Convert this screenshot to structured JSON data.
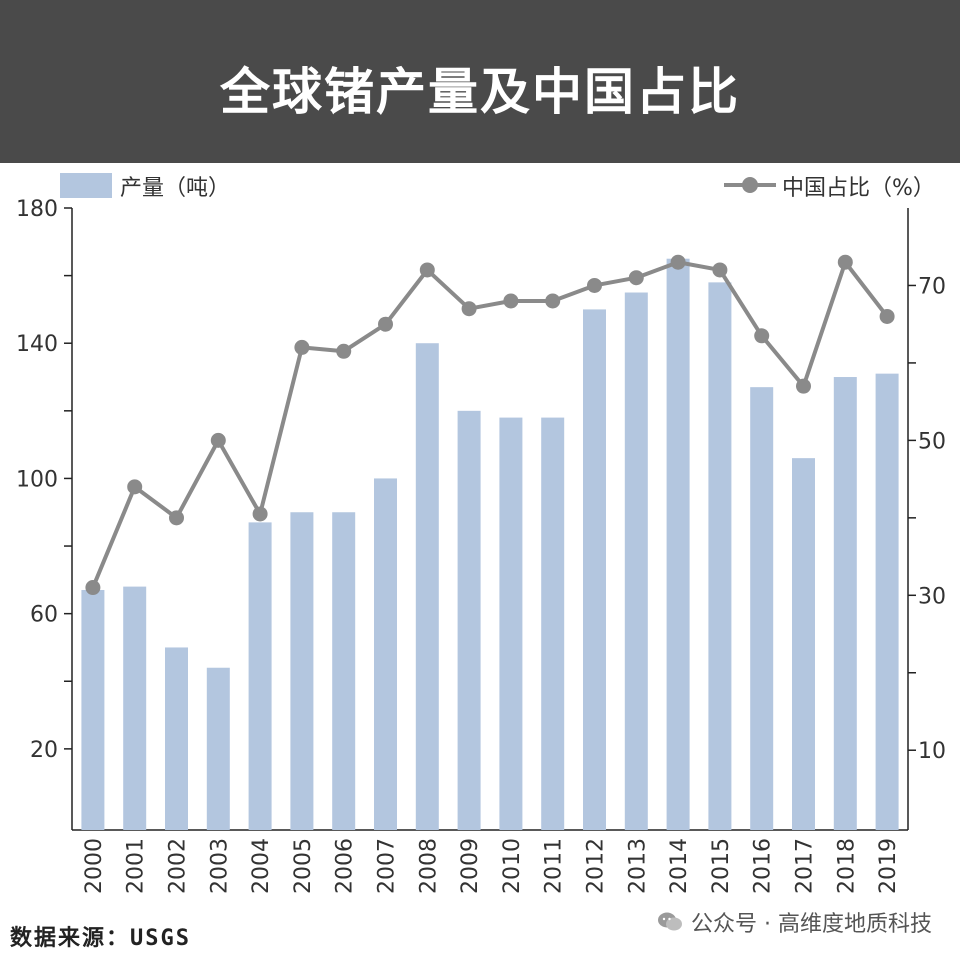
{
  "title": "全球锗产量及中国占比",
  "source": "数据来源：USGS",
  "watermark": "公众号 · 高维度地质科技",
  "chart_data": {
    "type": "bar",
    "categories": [
      "2000",
      "2001",
      "2002",
      "2003",
      "2004",
      "2005",
      "2006",
      "2007",
      "2008",
      "2009",
      "2010",
      "2011",
      "2012",
      "2013",
      "2014",
      "2015",
      "2016",
      "2017",
      "2018",
      "2019"
    ],
    "series": [
      {
        "name": "产量（吨）",
        "type": "bar",
        "axis": "left",
        "color": "#b3c6df",
        "values": [
          67,
          68,
          50,
          44,
          87,
          90,
          90,
          100,
          140,
          120,
          118,
          118,
          150,
          155,
          165,
          158,
          127,
          106,
          130,
          131
        ]
      },
      {
        "name": "中国占比（%）",
        "type": "line",
        "axis": "right",
        "color": "#8a8a8a",
        "values": [
          31,
          44,
          40,
          50,
          40.5,
          62,
          61.5,
          65,
          72,
          67,
          68,
          68,
          70,
          71,
          73,
          72,
          63.5,
          57,
          73,
          66
        ]
      }
    ],
    "y_left": {
      "ticks": [
        20,
        60,
        100,
        140,
        180
      ],
      "range": [
        -4,
        180
      ]
    },
    "y_right": {
      "ticks": [
        10,
        30,
        50,
        70
      ],
      "range": [
        -0.3,
        80
      ]
    },
    "legend_position": "top",
    "grid": false
  }
}
